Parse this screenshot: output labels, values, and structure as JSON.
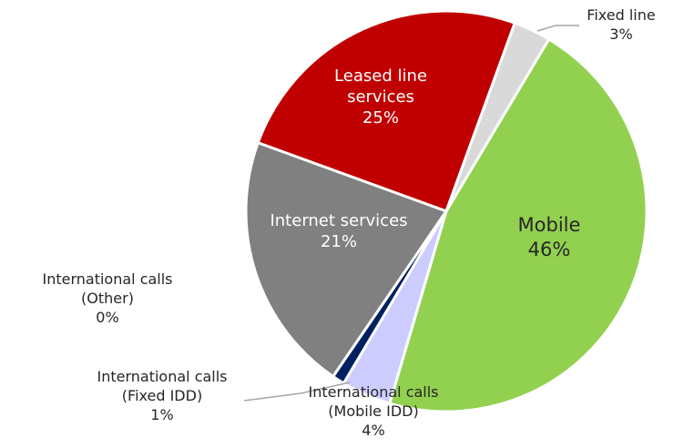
{
  "chart_data": {
    "type": "pie",
    "categories": [
      "Fixed line",
      "Mobile",
      "International calls (Mobile IDD)",
      "International calls (Fixed IDD)",
      "International calls (Other)",
      "Internet services",
      "Leased line services"
    ],
    "values": [
      3,
      46,
      4,
      1,
      0,
      21,
      25
    ],
    "value_labels": [
      "3%",
      "46%",
      "4%",
      "1%",
      "0%",
      "21%",
      "25%"
    ],
    "colors": [
      "#d9d9d9",
      "#92d050",
      "#ccccff",
      "#002060",
      "#1f3864",
      "#808080",
      "#c00000"
    ]
  }
}
